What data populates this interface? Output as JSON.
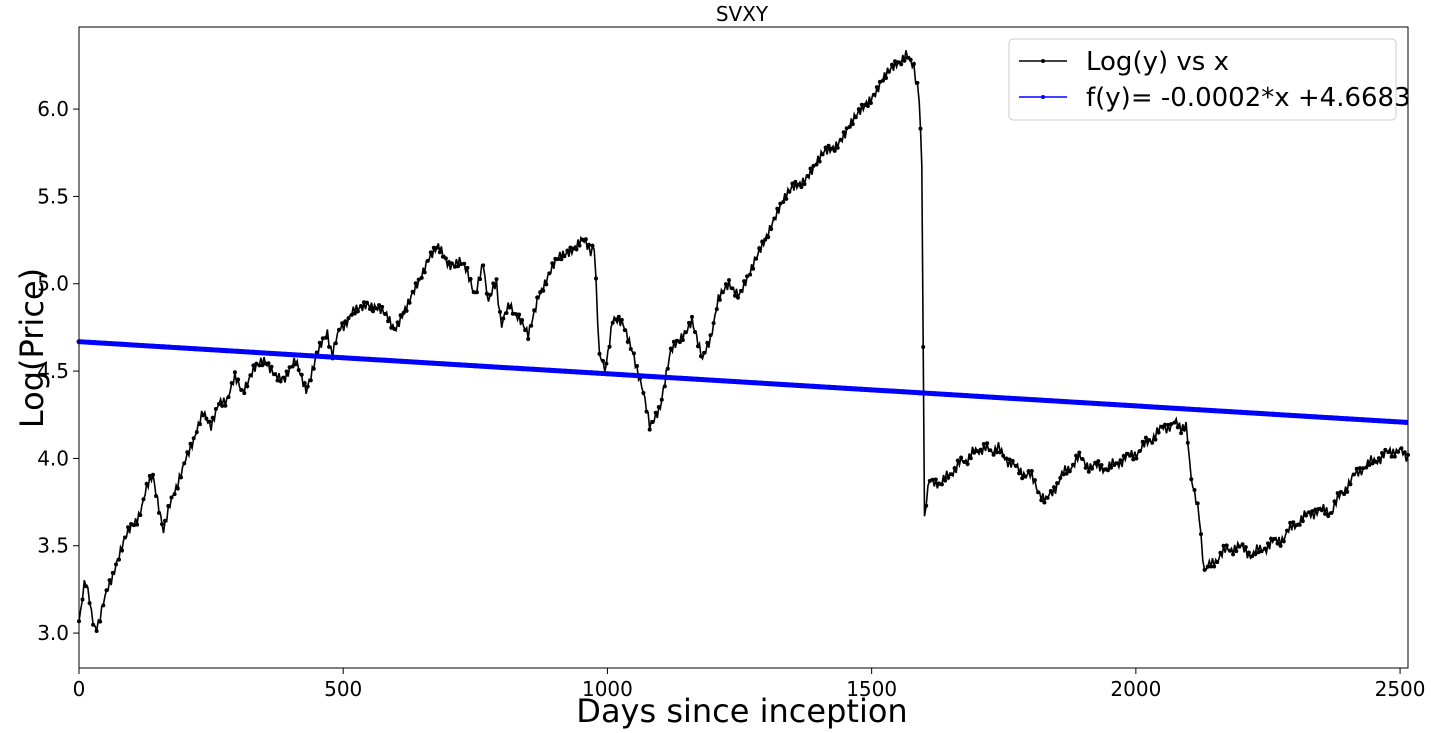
{
  "chart_data": {
    "type": "line",
    "title": "SVXY",
    "xlabel": "Days since inception",
    "ylabel": "Log(Price)",
    "xlim": [
      0,
      2515
    ],
    "ylim": [
      2.8,
      6.47
    ],
    "xticks": [
      0,
      500,
      1000,
      1500,
      2000,
      2500
    ],
    "yticks": [
      3.0,
      3.5,
      4.0,
      4.5,
      5.0,
      5.5,
      6.0
    ],
    "xtick_labels": [
      "0",
      "500",
      "1000",
      "1500",
      "2000",
      "2500"
    ],
    "ytick_labels": [
      "3.0",
      "3.5",
      "4.0",
      "4.5",
      "5.0",
      "5.5",
      "6.0"
    ],
    "grid": false,
    "legend_position": "top-right",
    "series": [
      {
        "name": "Log(y) vs x",
        "color": "#000000",
        "marker": "dot",
        "x": [
          0,
          10,
          20,
          30,
          40,
          55,
          70,
          90,
          110,
          125,
          140,
          160,
          175,
          190,
          205,
          220,
          235,
          250,
          265,
          280,
          295,
          310,
          330,
          350,
          370,
          390,
          410,
          430,
          450,
          470,
          480,
          495,
          510,
          525,
          545,
          565,
          585,
          600,
          620,
          640,
          660,
          680,
          700,
          720,
          735,
          750,
          765,
          775,
          790,
          800,
          815,
          830,
          850,
          870,
          890,
          910,
          930,
          950,
          965,
          975,
          985,
          995,
          1010,
          1030,
          1050,
          1065,
          1080,
          1100,
          1120,
          1140,
          1160,
          1180,
          1195,
          1210,
          1230,
          1250,
          1270,
          1290,
          1310,
          1330,
          1350,
          1370,
          1390,
          1410,
          1430,
          1450,
          1470,
          1490,
          1510,
          1530,
          1550,
          1565,
          1580,
          1590,
          1595,
          1600,
          1610,
          1630,
          1660,
          1700,
          1740,
          1770,
          1800,
          1830,
          1860,
          1890,
          1920,
          1950,
          1980,
          2010,
          2040,
          2070,
          2095,
          2105,
          2120,
          2130,
          2160,
          2190,
          2220,
          2250,
          2280,
          2310,
          2340,
          2370,
          2400,
          2430,
          2460,
          2490,
          2515
        ],
        "y": [
          3.05,
          3.3,
          3.2,
          3.0,
          3.1,
          3.25,
          3.4,
          3.55,
          3.65,
          3.8,
          3.9,
          3.6,
          3.75,
          3.9,
          4.0,
          4.15,
          4.25,
          4.2,
          4.3,
          4.35,
          4.45,
          4.4,
          4.5,
          4.55,
          4.5,
          4.45,
          4.55,
          4.4,
          4.6,
          4.7,
          4.6,
          4.75,
          4.8,
          4.85,
          4.9,
          4.85,
          4.8,
          4.75,
          4.85,
          5.0,
          5.15,
          5.2,
          5.1,
          5.15,
          5.05,
          4.95,
          5.1,
          4.9,
          5.0,
          4.75,
          4.9,
          4.8,
          4.7,
          4.95,
          5.05,
          5.15,
          5.2,
          5.25,
          5.2,
          5.2,
          4.6,
          4.5,
          4.8,
          4.75,
          4.6,
          4.4,
          4.2,
          4.3,
          4.6,
          4.7,
          4.8,
          4.55,
          4.7,
          4.9,
          5.0,
          4.95,
          5.05,
          5.2,
          5.35,
          5.45,
          5.55,
          5.6,
          5.65,
          5.75,
          5.8,
          5.85,
          5.95,
          6.05,
          6.1,
          6.2,
          6.28,
          6.3,
          6.25,
          6.05,
          5.66,
          3.65,
          3.9,
          3.85,
          3.95,
          4.05,
          4.05,
          3.95,
          3.9,
          3.75,
          3.9,
          4.0,
          3.95,
          3.95,
          4.0,
          4.05,
          4.15,
          4.2,
          4.18,
          3.9,
          3.65,
          3.35,
          3.45,
          3.5,
          3.45,
          3.5,
          3.55,
          3.65,
          3.7,
          3.7,
          3.85,
          3.95,
          4.0,
          4.05,
          4.02
        ]
      },
      {
        "name": "f(y)= -0.0002*x +4.6683",
        "color": "#0000ff",
        "marker": "dot",
        "slope": -0.0001839,
        "intercept": 4.6683
      }
    ]
  }
}
